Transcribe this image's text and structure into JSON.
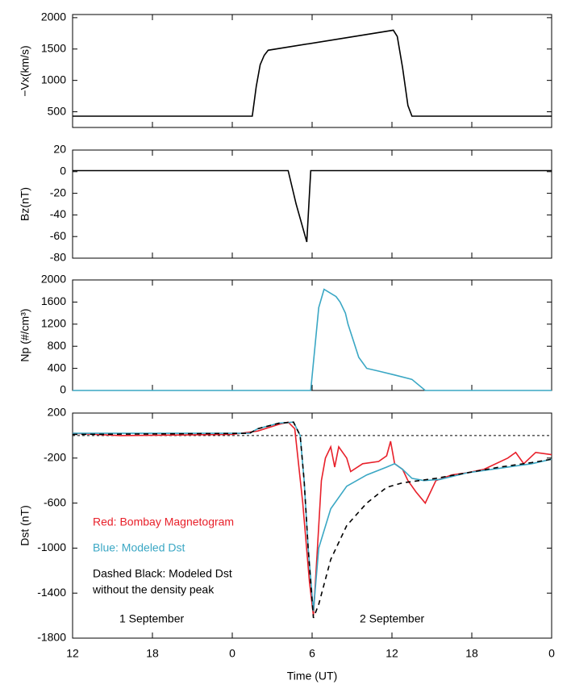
{
  "chart_data": [
    {
      "type": "line",
      "ylabel": "−Vx(km/s)",
      "xlim": [
        0,
        36
      ],
      "ylim": [
        250,
        2050
      ],
      "yticks": [
        500,
        1000,
        1500,
        2000
      ],
      "series": [
        {
          "color": "#000000",
          "x": [
            0,
            13.5,
            13.8,
            14.1,
            14.4,
            14.7,
            24.1,
            24.4,
            24.8,
            25.2,
            25.5,
            36
          ],
          "values": [
            430,
            430,
            900,
            1250,
            1400,
            1480,
            1800,
            1700,
            1200,
            600,
            430,
            430
          ]
        }
      ]
    },
    {
      "type": "line",
      "ylabel": "Bz(nT)",
      "xlim": [
        0,
        36
      ],
      "ylim": [
        -80,
        20
      ],
      "yticks": [
        20,
        0,
        -20,
        -40,
        -60,
        -80
      ],
      "series": [
        {
          "color": "#000000",
          "x": [
            0,
            16.2,
            16.8,
            17.6,
            17.9,
            36
          ],
          "values": [
            1,
            1,
            -30,
            -65,
            1,
            1
          ]
        }
      ]
    },
    {
      "type": "line",
      "ylabel": "Np (#/cm³)",
      "xlim": [
        0,
        36
      ],
      "ylim": [
        0,
        2000
      ],
      "yticks": [
        0,
        400,
        800,
        1200,
        1600,
        2000
      ],
      "series": [
        {
          "color": "#3aa7c4",
          "x": [
            0,
            17.9,
            18.5,
            18.9,
            19.8,
            20.1,
            20.5,
            20.7,
            21.1,
            21.5,
            22.1,
            23,
            24.2,
            25.5,
            26.5,
            36
          ],
          "values": [
            0,
            0,
            1500,
            1830,
            1700,
            1600,
            1400,
            1200,
            900,
            600,
            400,
            350,
            280,
            200,
            0,
            0
          ]
        }
      ]
    },
    {
      "type": "line",
      "ylabel": "Dst (nT)",
      "xlabel": "Time (UT)",
      "xlim": [
        0,
        36
      ],
      "ylim": [
        -1800,
        200
      ],
      "yticks": [
        200,
        -200,
        -600,
        -1000,
        -1400,
        -1800
      ],
      "xticks": [
        {
          "value": 0,
          "label": "12"
        },
        {
          "value": 6,
          "label": "18"
        },
        {
          "value": 12,
          "label": "0"
        },
        {
          "value": 18,
          "label": "6"
        },
        {
          "value": 24,
          "label": "12"
        },
        {
          "value": 30,
          "label": "18"
        },
        {
          "value": 36,
          "label": "0"
        }
      ],
      "hline": 0,
      "series": [
        {
          "color": "#e8202a",
          "x": [
            0,
            3.6,
            12,
            13.9,
            15.5,
            16.2,
            16.7,
            17.3,
            17.8,
            18.1,
            18.4,
            18.7,
            19,
            19.4,
            19.7,
            20,
            20.6,
            20.9,
            21.8,
            23,
            23.6,
            23.9,
            24.2,
            24.8,
            25.2,
            25.8,
            26.5,
            27.3,
            28.5,
            29.7,
            30.9,
            32.7,
            33.3,
            33.9,
            34.8,
            36
          ],
          "values": [
            20,
            0,
            10,
            40,
            100,
            120,
            60,
            -600,
            -1300,
            -1600,
            -1000,
            -400,
            -200,
            -100,
            -280,
            -100,
            -200,
            -320,
            -250,
            -230,
            -180,
            -50,
            -250,
            -300,
            -400,
            -500,
            -600,
            -400,
            -350,
            -330,
            -300,
            -200,
            -150,
            -250,
            -150,
            -170
          ]
        },
        {
          "color": "#3aa7c4",
          "x": [
            0,
            13.3,
            13.9,
            15.5,
            16.6,
            17.1,
            17.4,
            17.7,
            18.1,
            18.5,
            19.4,
            20.6,
            22.1,
            23.6,
            24.2,
            24.8,
            25.5,
            26.4,
            27.6,
            29.7,
            32.1,
            34.5,
            36
          ],
          "values": [
            20,
            20,
            60,
            110,
            120,
            0,
            -400,
            -1000,
            -1560,
            -1000,
            -650,
            -450,
            -350,
            -280,
            -250,
            -300,
            -380,
            -400,
            -390,
            -330,
            -290,
            -250,
            -210
          ]
        },
        {
          "color": "#000000",
          "dash": true,
          "x": [
            0,
            13.3,
            13.9,
            15.5,
            16.6,
            17.1,
            17.4,
            17.7,
            18.1,
            18.5,
            19.4,
            20.6,
            22.1,
            23.6,
            24.8,
            27.3,
            29.7,
            32.1,
            34.5,
            36
          ],
          "values": [
            10,
            20,
            60,
            110,
            120,
            0,
            -400,
            -1000,
            -1620,
            -1500,
            -1100,
            -800,
            -600,
            -460,
            -420,
            -380,
            -330,
            -280,
            -240,
            -210
          ]
        }
      ],
      "annotations": [
        {
          "text": "Red:  Bombay Magnetogram",
          "color": "#e8202a"
        },
        {
          "text": "Blue:  Modeled Dst",
          "color": "#3aa7c4"
        },
        {
          "text": "Dashed Black:  Modeled Dst",
          "color": "#000000"
        },
        {
          "text": "without the density peak",
          "color": "#000000"
        },
        {
          "text": "1 September",
          "color": "#000000"
        },
        {
          "text": "2 September",
          "color": "#000000"
        }
      ]
    }
  ]
}
